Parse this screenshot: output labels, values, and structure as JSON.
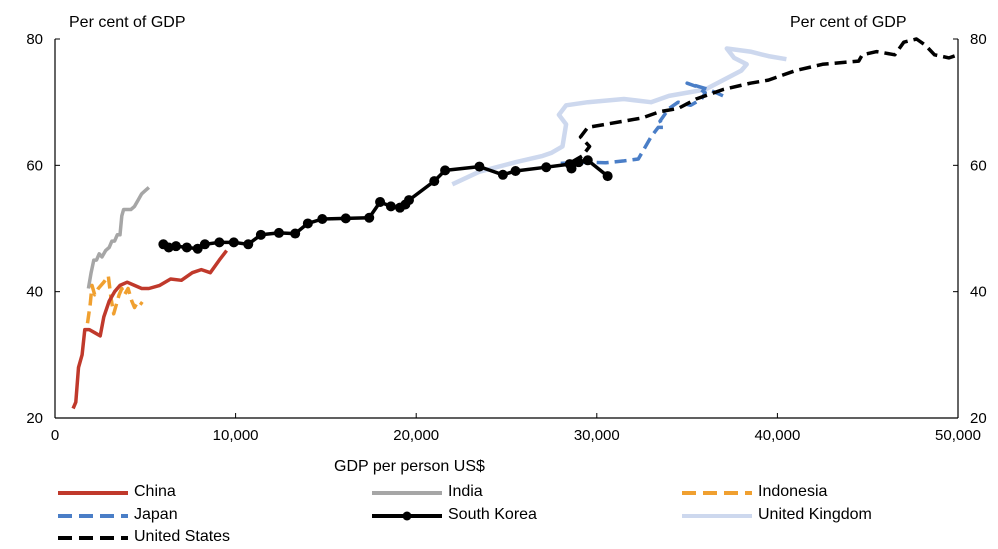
{
  "chart_data": {
    "type": "line",
    "xlabel": "GDP per person  US$",
    "ylabel_left": "Per cent of GDP",
    "ylabel_right": "Per cent of GDP",
    "xlim": [
      0,
      50000
    ],
    "ylim": [
      20,
      80
    ],
    "x_ticks": [
      "0",
      "10,000",
      "20,000",
      "30,000",
      "40,000",
      "50,000"
    ],
    "y_ticks": [
      "20",
      "40",
      "60",
      "80"
    ],
    "x_tick_values": [
      0,
      10000,
      20000,
      30000,
      40000,
      50000
    ],
    "y_tick_values": [
      20,
      40,
      60,
      80
    ],
    "grid": false,
    "legend_position": "bottom",
    "series": [
      {
        "name": "China",
        "color": "#c0392b",
        "style": "solid",
        "markers": false,
        "points": [
          [
            1000,
            21.5
          ],
          [
            1150,
            22.5
          ],
          [
            1300,
            28
          ],
          [
            1500,
            30
          ],
          [
            1650,
            34
          ],
          [
            1900,
            34
          ],
          [
            2200,
            33.5
          ],
          [
            2500,
            33
          ],
          [
            2700,
            36
          ],
          [
            3000,
            38.5
          ],
          [
            3300,
            40
          ],
          [
            3600,
            41
          ],
          [
            4000,
            41.5
          ],
          [
            4400,
            41
          ],
          [
            4800,
            40.5
          ],
          [
            5200,
            40.5
          ],
          [
            5800,
            41
          ],
          [
            6400,
            42
          ],
          [
            7000,
            41.8
          ],
          [
            7600,
            43
          ],
          [
            8100,
            43.5
          ],
          [
            8600,
            43
          ],
          [
            9100,
            45
          ],
          [
            9500,
            46.5
          ]
        ]
      },
      {
        "name": "India",
        "color": "#a6a6a6",
        "style": "solid",
        "markers": false,
        "points": [
          [
            1850,
            40.5
          ],
          [
            2000,
            43
          ],
          [
            2150,
            45
          ],
          [
            2300,
            45
          ],
          [
            2450,
            46
          ],
          [
            2600,
            45.5
          ],
          [
            2800,
            46.5
          ],
          [
            3000,
            47
          ],
          [
            3150,
            48
          ],
          [
            3300,
            48
          ],
          [
            3450,
            49
          ],
          [
            3600,
            49
          ],
          [
            3700,
            52
          ],
          [
            3800,
            53
          ],
          [
            4000,
            53
          ],
          [
            4200,
            53
          ],
          [
            4400,
            53.5
          ],
          [
            4600,
            54.5
          ],
          [
            4800,
            55.5
          ],
          [
            5000,
            56
          ],
          [
            5200,
            56.5
          ]
        ]
      },
      {
        "name": "Indonesia",
        "color": "#f0a030",
        "style": "dashed",
        "markers": false,
        "points": [
          [
            1800,
            35
          ],
          [
            1950,
            38
          ],
          [
            2050,
            41
          ],
          [
            2200,
            39.5
          ],
          [
            2400,
            40.5
          ],
          [
            2700,
            41.5
          ],
          [
            2950,
            42.5
          ],
          [
            3100,
            39
          ],
          [
            3250,
            36.5
          ],
          [
            3400,
            38
          ],
          [
            3550,
            39.5
          ],
          [
            3700,
            40.5
          ],
          [
            3850,
            39.5
          ],
          [
            4050,
            40.5
          ],
          [
            4250,
            38.5
          ],
          [
            4400,
            37.5
          ],
          [
            4600,
            38.5
          ],
          [
            4850,
            38
          ]
        ]
      },
      {
        "name": "Japan",
        "color": "#4a7ec7",
        "style": "dashed",
        "markers": false,
        "points": [
          [
            28000,
            60.3
          ],
          [
            29500,
            60.5
          ],
          [
            30500,
            60.4
          ],
          [
            31500,
            60.7
          ],
          [
            32300,
            61
          ],
          [
            32600,
            62.5
          ],
          [
            33000,
            64.5
          ],
          [
            33400,
            66
          ],
          [
            33700,
            66
          ],
          [
            33500,
            67
          ],
          [
            34000,
            69
          ],
          [
            34500,
            70
          ],
          [
            35200,
            69.5
          ],
          [
            35800,
            70.5
          ],
          [
            36000,
            71.5
          ],
          [
            35500,
            72.5
          ],
          [
            35000,
            73
          ],
          [
            36200,
            72
          ],
          [
            37000,
            71
          ]
        ]
      },
      {
        "name": "South Korea",
        "color": "#000000",
        "style": "solid",
        "markers": true,
        "points": [
          [
            6000,
            47.5
          ],
          [
            6300,
            47
          ],
          [
            6700,
            47.2
          ],
          [
            7300,
            47
          ],
          [
            7900,
            46.8
          ],
          [
            8300,
            47.5
          ],
          [
            9100,
            47.8
          ],
          [
            9900,
            47.8
          ],
          [
            10700,
            47.5
          ],
          [
            11400,
            49
          ],
          [
            12400,
            49.3
          ],
          [
            13300,
            49.2
          ],
          [
            14000,
            50.8
          ],
          [
            14800,
            51.5
          ],
          [
            16100,
            51.6
          ],
          [
            17400,
            51.7
          ],
          [
            18000,
            54.2
          ],
          [
            18600,
            53.5
          ],
          [
            19100,
            53.3
          ],
          [
            19400,
            53.8
          ],
          [
            19600,
            54.5
          ],
          [
            21000,
            57.5
          ],
          [
            21600,
            59.2
          ],
          [
            23500,
            59.8
          ],
          [
            24800,
            58.5
          ],
          [
            25500,
            59.1
          ],
          [
            27200,
            59.7
          ],
          [
            28500,
            60.2
          ],
          [
            28600,
            59.5
          ],
          [
            29000,
            60.5
          ],
          [
            29500,
            60.8
          ],
          [
            30600,
            58.3
          ]
        ]
      },
      {
        "name": "United Kingdom",
        "color": "#cdd8ee",
        "style": "solid",
        "markers": false,
        "points": [
          [
            22000,
            57
          ],
          [
            23500,
            59
          ],
          [
            25500,
            60.5
          ],
          [
            27000,
            61.5
          ],
          [
            27500,
            62
          ],
          [
            28100,
            63
          ],
          [
            28300,
            66.5
          ],
          [
            27900,
            68
          ],
          [
            28300,
            69.5
          ],
          [
            29500,
            70
          ],
          [
            31500,
            70.5
          ],
          [
            33000,
            70
          ],
          [
            34000,
            71
          ],
          [
            36000,
            72
          ],
          [
            38000,
            75
          ],
          [
            38300,
            76
          ],
          [
            37600,
            77
          ],
          [
            37200,
            78.5
          ],
          [
            38500,
            78
          ],
          [
            39500,
            77.3
          ],
          [
            40500,
            76.8
          ]
        ]
      },
      {
        "name": "United States",
        "color": "#000000",
        "style": "dashed",
        "markers": false,
        "points": [
          [
            28600,
            60.5
          ],
          [
            29200,
            61.5
          ],
          [
            29600,
            63
          ],
          [
            29100,
            64.5
          ],
          [
            29500,
            66
          ],
          [
            30500,
            66.5
          ],
          [
            31500,
            67
          ],
          [
            32500,
            67.5
          ],
          [
            33500,
            68.5
          ],
          [
            34500,
            69
          ],
          [
            35500,
            70.5
          ],
          [
            37000,
            72
          ],
          [
            38500,
            73
          ],
          [
            39500,
            73.5
          ],
          [
            41000,
            75
          ],
          [
            42500,
            76
          ],
          [
            44500,
            76.5
          ],
          [
            44700,
            77.5
          ],
          [
            45500,
            78
          ],
          [
            46500,
            77.5
          ],
          [
            47000,
            79.5
          ],
          [
            47700,
            80
          ],
          [
            48200,
            79
          ],
          [
            48700,
            77.5
          ],
          [
            49500,
            77
          ],
          [
            50000,
            77.5
          ]
        ]
      }
    ]
  }
}
